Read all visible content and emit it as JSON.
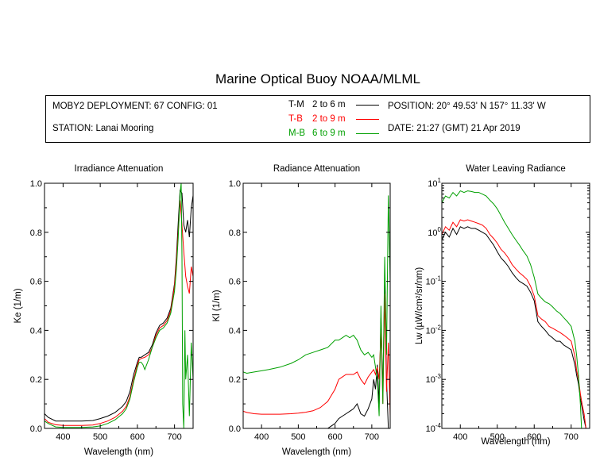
{
  "title": "Marine Optical Buoy NOAA/MLML",
  "info": {
    "deployment": "MOBY2 DEPLOYMENT: 67 CONFIG: 01",
    "station": "STATION: Lanai Mooring",
    "position": "POSITION: 20° 49.53' N   157° 11.33' W",
    "date": "DATE: 21:27 (GMT) 21 Apr 2019"
  },
  "legend": [
    {
      "code": "T-M",
      "range": "2 to 6  m",
      "color": "#000000"
    },
    {
      "code": "T-B",
      "range": "2 to 9  m",
      "color": "#ff0000"
    },
    {
      "code": "M-B",
      "range": "6 to 9  m",
      "color": "#00a000"
    }
  ],
  "chart_data": [
    {
      "type": "line",
      "title": "Irradiance Attenuation",
      "xlabel": "Wavelength (nm)",
      "ylabel": "Ke  (1/m)",
      "xlim": [
        350,
        750
      ],
      "ylim": [
        0,
        1
      ],
      "xticks": [
        400,
        500,
        600,
        700
      ],
      "yticks": [
        0.0,
        0.2,
        0.4,
        0.6,
        0.8,
        1.0
      ],
      "yticklabels": [
        "0.0",
        "0.2",
        "0.4",
        "0.6",
        "0.8",
        "1.0"
      ],
      "series": [
        {
          "name": "T-M",
          "color": "#000000",
          "x": [
            350,
            360,
            380,
            400,
            420,
            450,
            480,
            500,
            520,
            540,
            560,
            570,
            580,
            590,
            600,
            605,
            610,
            620,
            630,
            640,
            650,
            660,
            670,
            680,
            690,
            700,
            705,
            710,
            715,
            720,
            725,
            730,
            735,
            740,
            745,
            750
          ],
          "y": [
            0.06,
            0.045,
            0.03,
            0.03,
            0.03,
            0.03,
            0.032,
            0.04,
            0.05,
            0.065,
            0.09,
            0.11,
            0.15,
            0.22,
            0.27,
            0.29,
            0.29,
            0.3,
            0.31,
            0.34,
            0.39,
            0.42,
            0.43,
            0.45,
            0.49,
            0.59,
            0.7,
            0.84,
            0.97,
            0.96,
            0.83,
            0.8,
            0.85,
            0.78,
            0.9,
            0.95
          ]
        },
        {
          "name": "T-B",
          "color": "#ff0000",
          "x": [
            350,
            360,
            380,
            400,
            420,
            450,
            480,
            500,
            520,
            540,
            560,
            570,
            580,
            590,
            600,
            605,
            610,
            620,
            630,
            640,
            650,
            660,
            670,
            680,
            690,
            700,
            705,
            710,
            715,
            720,
            725,
            730,
            735,
            740,
            745,
            750
          ],
          "y": [
            0.04,
            0.025,
            0.015,
            0.012,
            0.012,
            0.012,
            0.014,
            0.02,
            0.03,
            0.045,
            0.07,
            0.09,
            0.13,
            0.2,
            0.26,
            0.28,
            0.285,
            0.29,
            0.3,
            0.33,
            0.38,
            0.41,
            0.42,
            0.44,
            0.48,
            0.58,
            0.68,
            0.8,
            0.93,
            0.83,
            0.72,
            0.62,
            0.58,
            0.55,
            0.66,
            0.62
          ]
        },
        {
          "name": "M-B",
          "color": "#00a000",
          "x": [
            350,
            360,
            380,
            400,
            420,
            450,
            480,
            500,
            520,
            540,
            560,
            570,
            580,
            590,
            600,
            605,
            610,
            615,
            620,
            630,
            640,
            650,
            660,
            670,
            680,
            690,
            700,
            705,
            710,
            715,
            718,
            720,
            722,
            725,
            728,
            730,
            735,
            740,
            745,
            750
          ],
          "y": [
            0.03,
            0.02,
            0.006,
            0.004,
            0.004,
            0.004,
            0.006,
            0.01,
            0.02,
            0.035,
            0.06,
            0.08,
            0.12,
            0.19,
            0.25,
            0.27,
            0.27,
            0.26,
            0.24,
            0.28,
            0.33,
            0.37,
            0.4,
            0.41,
            0.43,
            0.47,
            0.56,
            0.65,
            0.78,
            0.96,
            1.0,
            0.7,
            0.1,
            0.0,
            0.4,
            0.2,
            0.3,
            0.05,
            0.35,
            0.2
          ]
        }
      ]
    },
    {
      "type": "line",
      "title": "Radiance Attenuation",
      "xlabel": "Wavelength (nm)",
      "ylabel": "Kl  (1/m)",
      "xlim": [
        350,
        750
      ],
      "ylim": [
        0,
        1
      ],
      "xticks": [
        400,
        500,
        600,
        700
      ],
      "yticks": [
        0.0,
        0.2,
        0.4,
        0.6,
        0.8,
        1.0
      ],
      "yticklabels": [
        "0.0",
        "0.2",
        "0.4",
        "0.6",
        "0.8",
        "1.0"
      ],
      "series": [
        {
          "name": "T-M",
          "color": "#000000",
          "x": [
            580,
            590,
            600,
            610,
            620,
            630,
            640,
            650,
            660,
            670,
            680,
            690,
            700,
            705,
            710,
            715,
            720,
            725,
            730,
            735,
            740,
            745
          ],
          "y": [
            0.0,
            0.01,
            0.02,
            0.04,
            0.05,
            0.06,
            0.07,
            0.08,
            0.1,
            0.06,
            0.05,
            0.08,
            0.12,
            0.2,
            0.16,
            0.26,
            0.1,
            0.45,
            0.15,
            0.6,
            0.2,
            0.0
          ]
        },
        {
          "name": "T-B",
          "color": "#ff0000",
          "x": [
            350,
            360,
            380,
            400,
            420,
            450,
            480,
            500,
            520,
            540,
            560,
            580,
            600,
            610,
            620,
            630,
            640,
            650,
            660,
            670,
            680,
            690,
            700,
            705,
            710,
            715,
            720,
            725,
            730,
            735,
            740,
            745,
            750
          ],
          "y": [
            0.07,
            0.065,
            0.06,
            0.058,
            0.058,
            0.058,
            0.06,
            0.062,
            0.066,
            0.072,
            0.085,
            0.11,
            0.16,
            0.2,
            0.21,
            0.22,
            0.22,
            0.22,
            0.23,
            0.2,
            0.18,
            0.21,
            0.23,
            0.24,
            0.22,
            0.25,
            0.2,
            0.4,
            0.1,
            0.55,
            0.15,
            0.35,
            0.05
          ]
        },
        {
          "name": "M-B",
          "color": "#00a000",
          "x": [
            350,
            360,
            380,
            400,
            420,
            450,
            480,
            500,
            520,
            540,
            560,
            580,
            600,
            610,
            620,
            630,
            640,
            650,
            660,
            670,
            680,
            690,
            700,
            705,
            710,
            715,
            720,
            725,
            730,
            735,
            740,
            745,
            750
          ],
          "y": [
            0.23,
            0.225,
            0.23,
            0.235,
            0.24,
            0.25,
            0.265,
            0.28,
            0.3,
            0.31,
            0.32,
            0.33,
            0.36,
            0.36,
            0.37,
            0.38,
            0.37,
            0.38,
            0.36,
            0.32,
            0.3,
            0.31,
            0.29,
            0.3,
            0.25,
            0.2,
            0.05,
            0.5,
            0.1,
            0.7,
            0.3,
            0.95,
            0.6
          ]
        }
      ]
    },
    {
      "type": "line",
      "title": "Water Leaving Radiance",
      "xlabel": "Wavelength (nm)",
      "ylabel": "Lw  (µW/cm²/sr/nm)",
      "xlim": [
        350,
        750
      ],
      "ylim": [
        0.0001,
        10
      ],
      "yscale": "log",
      "xticks": [
        400,
        500,
        600,
        700
      ],
      "yticks": [
        0.0001,
        0.001,
        0.01,
        0.1,
        1,
        10
      ],
      "yticklabels": [
        [
          "10",
          "-4"
        ],
        [
          "10",
          "-3"
        ],
        [
          "10",
          "-2"
        ],
        [
          "10",
          "-1"
        ],
        [
          "10",
          "0"
        ],
        [
          "10",
          "1"
        ]
      ],
      "series": [
        {
          "name": "T-M",
          "color": "#000000",
          "x": [
            350,
            360,
            370,
            380,
            390,
            400,
            410,
            420,
            430,
            440,
            450,
            460,
            470,
            480,
            490,
            500,
            510,
            520,
            530,
            540,
            550,
            560,
            570,
            580,
            590,
            600,
            610,
            620,
            630,
            640,
            650,
            660,
            670,
            680,
            690,
            700,
            710,
            715,
            720,
            725,
            730,
            735,
            740
          ],
          "y": [
            0.7,
            1.0,
            0.8,
            1.2,
            0.9,
            1.3,
            1.2,
            1.3,
            1.2,
            1.2,
            1.1,
            1.0,
            0.9,
            0.7,
            0.55,
            0.4,
            0.3,
            0.25,
            0.2,
            0.15,
            0.12,
            0.1,
            0.09,
            0.08,
            0.06,
            0.04,
            0.015,
            0.012,
            0.01,
            0.008,
            0.007,
            0.006,
            0.006,
            0.005,
            0.0045,
            0.004,
            0.002,
            0.0012,
            0.0008,
            0.0004,
            0.00025,
            0.00015,
            0.0001
          ]
        },
        {
          "name": "T-B",
          "color": "#ff0000",
          "x": [
            350,
            360,
            370,
            380,
            390,
            400,
            410,
            420,
            430,
            440,
            450,
            460,
            470,
            480,
            490,
            500,
            510,
            520,
            530,
            540,
            550,
            560,
            570,
            580,
            590,
            600,
            610,
            620,
            630,
            640,
            650,
            660,
            670,
            680,
            690,
            700,
            710,
            715,
            720,
            725,
            730,
            735,
            740
          ],
          "y": [
            0.9,
            1.3,
            1.1,
            1.6,
            1.3,
            1.8,
            1.7,
            1.8,
            1.7,
            1.6,
            1.5,
            1.4,
            1.2,
            0.9,
            0.75,
            0.6,
            0.45,
            0.38,
            0.3,
            0.22,
            0.18,
            0.15,
            0.13,
            0.11,
            0.08,
            0.05,
            0.02,
            0.017,
            0.015,
            0.012,
            0.011,
            0.01,
            0.009,
            0.008,
            0.007,
            0.006,
            0.003,
            0.0015,
            0.001,
            0.0005,
            0.0003,
            0.0002,
            0.0001
          ]
        },
        {
          "name": "M-B",
          "color": "#00a000",
          "x": [
            350,
            360,
            370,
            380,
            390,
            400,
            410,
            420,
            430,
            440,
            450,
            460,
            470,
            480,
            490,
            500,
            510,
            520,
            530,
            540,
            550,
            560,
            570,
            580,
            590,
            600,
            610,
            620,
            630,
            640,
            650,
            660,
            670,
            680,
            690,
            700,
            710,
            715,
            720,
            725,
            728
          ],
          "y": [
            4.0,
            5.5,
            5.0,
            6.5,
            5.5,
            7.0,
            6.5,
            7.0,
            6.8,
            6.5,
            6.5,
            6.0,
            5.5,
            4.5,
            3.8,
            3.0,
            2.2,
            1.6,
            1.2,
            0.9,
            0.7,
            0.55,
            0.42,
            0.33,
            0.22,
            0.12,
            0.055,
            0.045,
            0.038,
            0.035,
            0.03,
            0.025,
            0.022,
            0.018,
            0.015,
            0.012,
            0.006,
            0.003,
            0.0012,
            0.0003,
            0.0001
          ]
        }
      ]
    }
  ]
}
